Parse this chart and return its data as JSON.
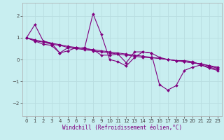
{
  "background_color": "#c8eef0",
  "grid_color": "#b8dde0",
  "line_color": "#800080",
  "marker": "D",
  "marker_size": 2.0,
  "line_width": 0.8,
  "xlim": [
    -0.5,
    23.5
  ],
  "ylim": [
    -2.6,
    2.6
  ],
  "xlabel": "Windchill (Refroidissement éolien,°C)",
  "xlabel_fontsize": 5.5,
  "tick_fontsize": 5.0,
  "xticks": [
    0,
    1,
    2,
    3,
    4,
    5,
    6,
    7,
    8,
    9,
    10,
    11,
    12,
    13,
    14,
    15,
    16,
    17,
    18,
    19,
    20,
    21,
    22,
    23
  ],
  "yticks": [
    -2,
    -1,
    0,
    1,
    2
  ],
  "series": [
    [
      1.0,
      1.6,
      0.85,
      0.75,
      0.3,
      0.55,
      0.5,
      0.55,
      2.1,
      1.15,
      0.0,
      -0.1,
      -0.3,
      0.1,
      0.35,
      0.3,
      -1.15,
      -1.4,
      -1.2,
      -0.5,
      -0.35,
      -0.25,
      -0.4,
      -0.5
    ],
    [
      1.0,
      0.85,
      0.7,
      0.65,
      0.3,
      0.4,
      0.55,
      0.5,
      0.45,
      0.2,
      0.2,
      0.25,
      -0.15,
      0.35,
      0.35,
      0.3,
      0.1,
      0.0,
      -0.05,
      -0.05,
      -0.1,
      -0.25,
      -0.35,
      -0.45
    ],
    [
      1.0,
      0.85,
      0.8,
      0.7,
      0.65,
      0.55,
      0.5,
      0.45,
      0.4,
      0.35,
      0.3,
      0.25,
      0.2,
      0.15,
      0.1,
      0.08,
      0.05,
      0.0,
      -0.05,
      -0.1,
      -0.15,
      -0.2,
      -0.3,
      -0.4
    ],
    [
      1.0,
      0.9,
      0.82,
      0.75,
      0.68,
      0.6,
      0.55,
      0.5,
      0.45,
      0.4,
      0.35,
      0.3,
      0.25,
      0.2,
      0.15,
      0.1,
      0.05,
      0.0,
      -0.05,
      -0.1,
      -0.15,
      -0.2,
      -0.28,
      -0.35
    ]
  ]
}
